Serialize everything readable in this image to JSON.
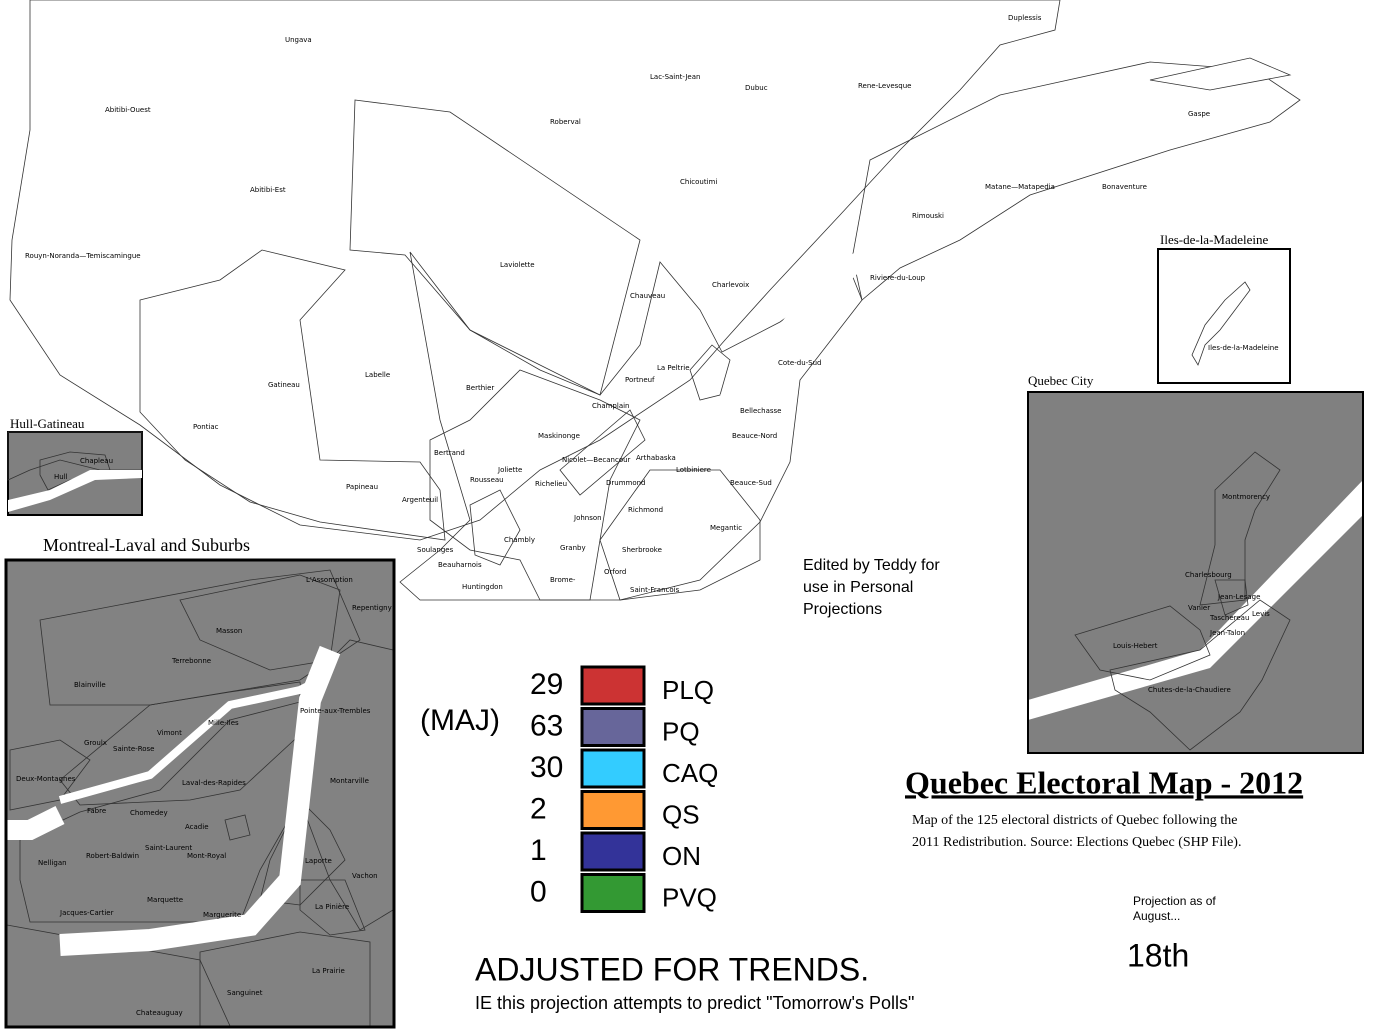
{
  "title": "Quebec Electoral Map - 2012",
  "description": [
    "Map of the 125 electoral districts of Quebec following the",
    "2011 Redistribution. Source: Elections Quebec (SHP File)."
  ],
  "credit": [
    "Edited by Teddy for",
    "use in Personal",
    "Projections"
  ],
  "legend": {
    "majority_label": "(MAJ)",
    "parties": [
      {
        "seats": "29",
        "name": "PLQ",
        "color": "#cc3333"
      },
      {
        "seats": "63",
        "name": "PQ",
        "color": "#67669a"
      },
      {
        "seats": "30",
        "name": "CAQ",
        "color": "#33ccff"
      },
      {
        "seats": "2",
        "name": "QS",
        "color": "#ff9933"
      },
      {
        "seats": "1",
        "name": "ON",
        "color": "#333399"
      },
      {
        "seats": "0",
        "name": "PVQ",
        "color": "#339933"
      }
    ]
  },
  "footer": {
    "heading": "ADJUSTED FOR TRENDS.",
    "note": "IE this projection attempts to predict \"Tomorrow's Polls\""
  },
  "projection": {
    "label": [
      "Projection as of",
      "August..."
    ],
    "date": "18th"
  },
  "insets": [
    "Hull-Gatineau",
    "Montreal-Laval and Suburbs",
    "Quebec City",
    "Iles-de-la-Madeleine"
  ],
  "district_labels": [
    "Ungava",
    "Duplessis",
    "Lac-Saint-Jean",
    "Dubuc",
    "Rene-Levesque",
    "Abitibi-Ouest",
    "Roberval",
    "Gaspe",
    "Abitibi-Est",
    "Chicoutimi",
    "Matane—Matapedia",
    "Bonaventure",
    "Rimouski",
    "Rouyn-Noranda—Temiscamingue",
    "Laviolette",
    "Charlevoix",
    "Riviere-du-Loup",
    "Chauveau",
    "Cote-du-Sud",
    "Labelle",
    "Gatineau",
    "Berthier",
    "Portneuf",
    "La Peltrie",
    "Bellechasse",
    "Pontiac",
    "Champlain",
    "Maskinonge",
    "Beauce-Nord",
    "Nicolet—Becancour",
    "Arthabaska",
    "Lotbiniere",
    "Bertrand",
    "Joliette",
    "Papineau",
    "Argenteuil",
    "Drummond",
    "Beauce-Sud",
    "Richelieu",
    "Rousseau",
    "Johnson",
    "Richmond",
    "Megantic",
    "Chambly",
    "Granby",
    "Sherbrooke",
    "Soulanges",
    "Beauharnois",
    "Huntingdon",
    "Brome-",
    "Orford",
    "Saint-Francois",
    "Iles-de-la-Madeleine",
    "Chapleau",
    "Hull",
    "L'Assomption",
    "Repentigny",
    "Masson",
    "Terrebonne",
    "Blainville",
    "Pointe-aux-Trembles",
    "Mille-Iles",
    "Vimont",
    "Groulx",
    "Deux-Montagnes",
    "Sainte-Rose",
    "Laval-des-Rapides",
    "Montarville",
    "Fabre",
    "Chomedey",
    "Acadie",
    "Laporte",
    "Robert-Baldwin",
    "Saint-Laurent",
    "Mont-Royal",
    "Vachon",
    "Nelligan",
    "Marquette",
    "Marguerite",
    "La Pinière",
    "Jacques-Cartier",
    "La Prairie",
    "Sanguinet",
    "Chateauguay",
    "Montmorency",
    "Charlesbourg",
    "Jean-Lesage",
    "Vanier",
    "Taschereau",
    "Jean-Talon",
    "Louis-Hebert",
    "Levis",
    "Chutes-de-la-Chaudiere"
  ]
}
